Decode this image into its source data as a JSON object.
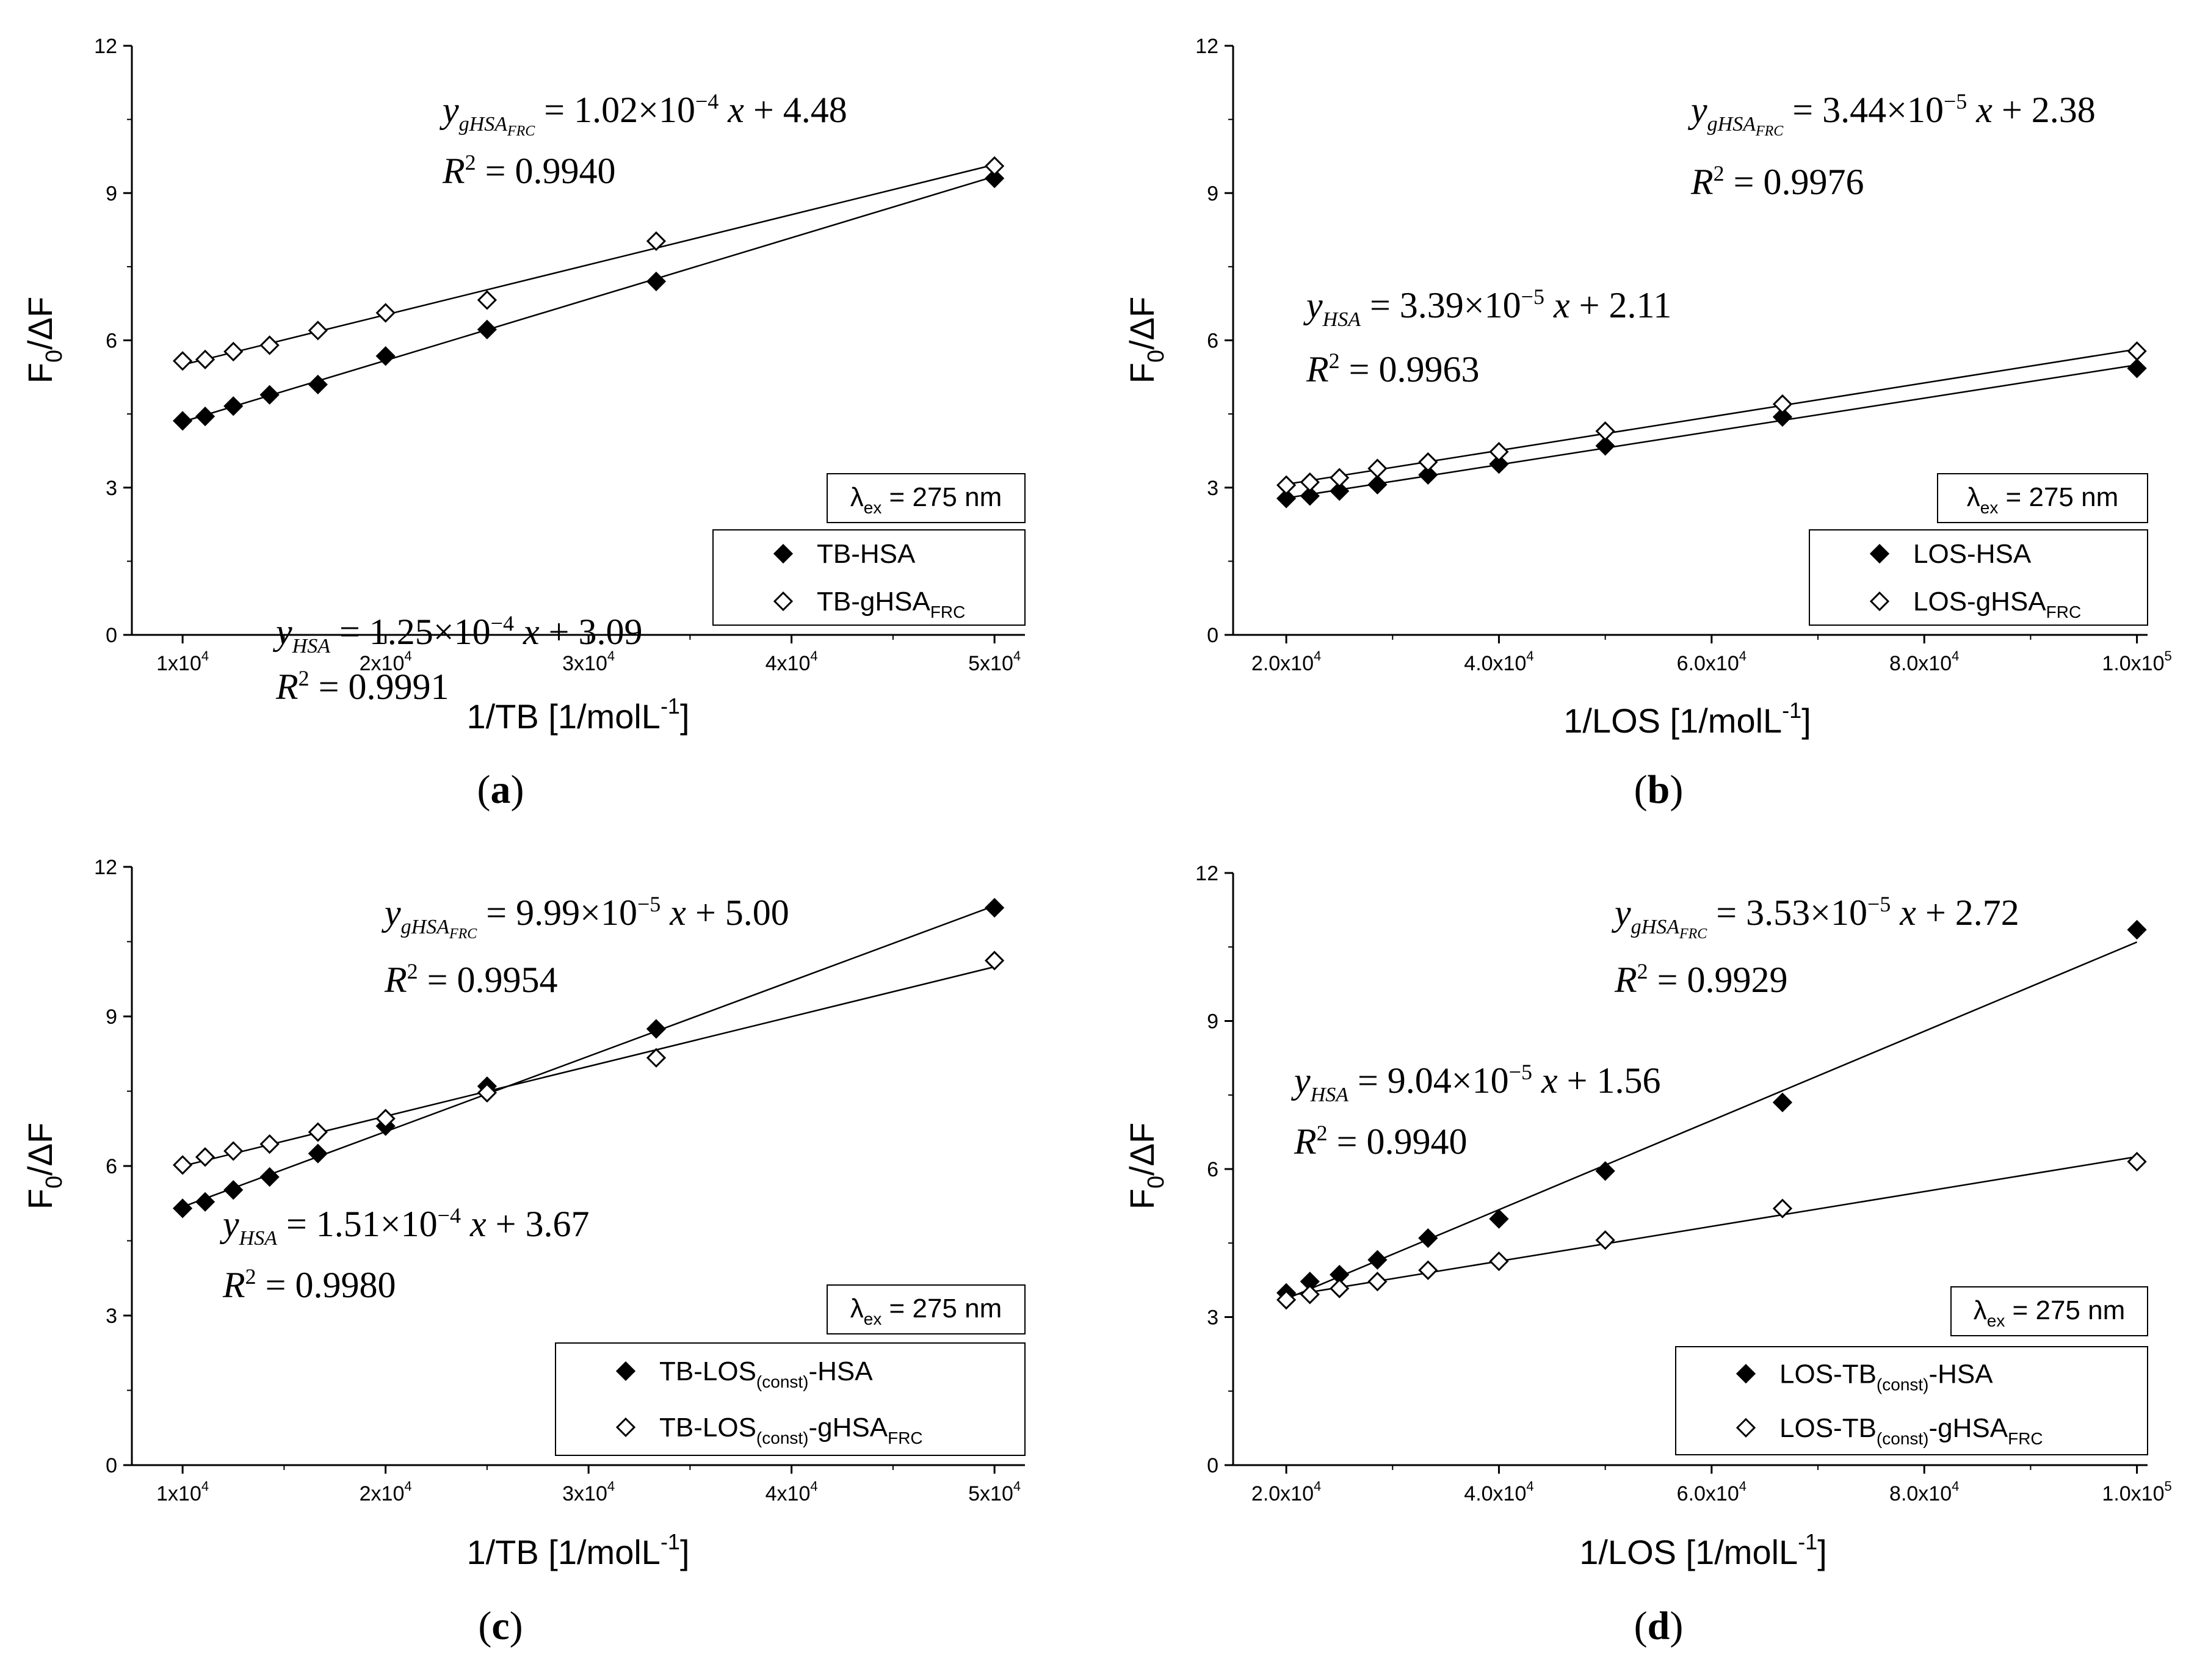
{
  "chart_data": [
    {
      "id": "a",
      "type": "scatter",
      "panel_label": "a",
      "xlabel": "1/TB [1/molL",
      "xlabel_sup": "-1",
      "xlabel_end": "]",
      "ylabel_main": "F",
      "ylabel_sub": "0",
      "ylabel_end": "/ΔF",
      "xlim": [
        7500,
        51500
      ],
      "ylim": [
        0,
        12
      ],
      "xticks": [
        {
          "value": 10000,
          "mant": "1x10",
          "exp": "4"
        },
        {
          "value": 20000,
          "mant": "2x10",
          "exp": "4"
        },
        {
          "value": 30000,
          "mant": "3x10",
          "exp": "4"
        },
        {
          "value": 40000,
          "mant": "4x10",
          "exp": "4"
        },
        {
          "value": 50000,
          "mant": "5x10",
          "exp": "4"
        }
      ],
      "yticks": [
        0,
        3,
        6,
        9,
        12
      ],
      "lambda_box": {
        "sym": "λ",
        "sub": "ex",
        "text": " = 275 nm"
      },
      "series": [
        {
          "name": "TB-HSA",
          "legend_parts": [
            [
              "TB-HSA",
              ""
            ]
          ],
          "marker": "filled-diamond",
          "x": [
            10000,
            11111,
            12500,
            14286,
            16667,
            20000,
            25000,
            33333,
            50000
          ],
          "y": [
            4.36,
            4.45,
            4.66,
            4.89,
            5.1,
            5.68,
            6.22,
            7.2,
            9.3
          ],
          "fit": {
            "slope": 0.000125,
            "intercept": 3.09
          },
          "eq": {
            "y": "y",
            "ysub": "HSA",
            "ysub2": "",
            "coef": "1.25",
            "exp": "−4",
            "intercept": "3.09",
            "r2": "0.9991"
          }
        },
        {
          "name": "TB-gHSAFRC",
          "legend_parts": [
            [
              "TB-gHSA",
              ""
            ],
            [
              "FRC",
              "sub"
            ]
          ],
          "marker": "open-diamond",
          "x": [
            10000,
            11111,
            12500,
            14286,
            16667,
            20000,
            25000,
            33333,
            50000
          ],
          "y": [
            5.58,
            5.61,
            5.77,
            5.9,
            6.2,
            6.56,
            6.82,
            8.02,
            9.55
          ],
          "fit": {
            "slope": 0.000102,
            "intercept": 4.48
          },
          "eq": {
            "y": "y",
            "ysub": "gHSA",
            "ysub2": "FRC",
            "coef": "1.02",
            "exp": "−4",
            "intercept": "4.48",
            "r2": "0.9940"
          }
        }
      ]
    },
    {
      "id": "b",
      "type": "scatter",
      "panel_label": "b",
      "xlabel": "1/LOS [1/molL",
      "xlabel_sup": "-1",
      "xlabel_end": "]",
      "ylabel_main": "F",
      "ylabel_sub": "0",
      "ylabel_end": "/ΔF",
      "xlim": [
        15000,
        101000
      ],
      "ylim": [
        0,
        12
      ],
      "xticks": [
        {
          "value": 20000,
          "mant": "2.0x10",
          "exp": "4"
        },
        {
          "value": 40000,
          "mant": "4.0x10",
          "exp": "4"
        },
        {
          "value": 60000,
          "mant": "6.0x10",
          "exp": "4"
        },
        {
          "value": 80000,
          "mant": "8.0x10",
          "exp": "4"
        },
        {
          "value": 100000,
          "mant": "1.0x10",
          "exp": "5"
        }
      ],
      "yticks": [
        0,
        3,
        6,
        9,
        12
      ],
      "lambda_box": {
        "sym": "λ",
        "sub": "ex",
        "text": " = 275 nm"
      },
      "series": [
        {
          "name": "LOS-HSA",
          "legend_parts": [
            [
              "LOS-HSA",
              ""
            ]
          ],
          "marker": "filled-diamond",
          "x": [
            20000,
            22222,
            25000,
            28571,
            33333,
            40000,
            50000,
            66667,
            100000
          ],
          "y": [
            2.78,
            2.83,
            2.93,
            3.06,
            3.26,
            3.48,
            3.85,
            4.44,
            5.43
          ],
          "fit": {
            "slope": 3.39e-05,
            "intercept": 2.11
          },
          "eq": {
            "y": "y",
            "ysub": "HSA",
            "ysub2": "",
            "coef": "3.39",
            "exp": "−5",
            "intercept": "2.11",
            "r2": "0.9963"
          }
        },
        {
          "name": "LOS-gHSAFRC",
          "legend_parts": [
            [
              "LOS-gHSA",
              ""
            ],
            [
              "FRC",
              "sub"
            ]
          ],
          "marker": "open-diamond",
          "x": [
            20000,
            22222,
            25000,
            28571,
            33333,
            40000,
            50000,
            66667,
            100000
          ],
          "y": [
            3.05,
            3.11,
            3.2,
            3.39,
            3.52,
            3.73,
            4.15,
            4.7,
            5.78
          ],
          "fit": {
            "slope": 3.44e-05,
            "intercept": 2.38
          },
          "eq": {
            "y": "y",
            "ysub": "gHSA",
            "ysub2": "FRC",
            "coef": "3.44",
            "exp": "−5",
            "intercept": "2.38",
            "r2": "0.9976"
          }
        }
      ]
    },
    {
      "id": "c",
      "type": "scatter",
      "panel_label": "c",
      "xlabel": "1/TB [1/molL",
      "xlabel_sup": "-1",
      "xlabel_end": "]",
      "ylabel_main": "F",
      "ylabel_sub": "0",
      "ylabel_end": "/ΔF",
      "xlim": [
        7500,
        51500
      ],
      "ylim": [
        0,
        12
      ],
      "xticks": [
        {
          "value": 10000,
          "mant": "1x10",
          "exp": "4"
        },
        {
          "value": 20000,
          "mant": "2x10",
          "exp": "4"
        },
        {
          "value": 30000,
          "mant": "3x10",
          "exp": "4"
        },
        {
          "value": 40000,
          "mant": "4x10",
          "exp": "4"
        },
        {
          "value": 50000,
          "mant": "5x10",
          "exp": "4"
        }
      ],
      "yticks": [
        0,
        3,
        6,
        9,
        12
      ],
      "lambda_box": {
        "sym": "λ",
        "sub": "ex",
        "text": " = 275 nm"
      },
      "series": [
        {
          "name": "TB-LOS(const)-HSA",
          "legend_parts": [
            [
              "TB-LOS",
              ""
            ],
            [
              "(const)",
              "sub"
            ],
            [
              "-HSA",
              ""
            ]
          ],
          "marker": "filled-diamond",
          "x": [
            10000,
            11111,
            12500,
            14286,
            16667,
            20000,
            25000,
            33333,
            50000
          ],
          "y": [
            5.15,
            5.28,
            5.52,
            5.78,
            6.25,
            6.8,
            7.6,
            8.75,
            11.18
          ],
          "fit": {
            "slope": 0.000151,
            "intercept": 3.67
          },
          "eq": {
            "y": "y",
            "ysub": "HSA",
            "ysub2": "",
            "coef": "1.51",
            "exp": "−4",
            "intercept": "3.67",
            "r2": "0.9980"
          }
        },
        {
          "name": "TB-LOS(const)-gHSAFRC",
          "legend_parts": [
            [
              "TB-LOS",
              ""
            ],
            [
              "(const)",
              "sub"
            ],
            [
              "-gHSA",
              ""
            ],
            [
              "FRC",
              "sub"
            ]
          ],
          "marker": "open-diamond",
          "x": [
            10000,
            11111,
            12500,
            14286,
            16667,
            20000,
            25000,
            33333,
            50000
          ],
          "y": [
            6.02,
            6.18,
            6.3,
            6.44,
            6.68,
            6.95,
            7.47,
            8.17,
            10.12
          ],
          "fit": {
            "slope": 9.99e-05,
            "intercept": 5.0
          },
          "eq": {
            "y": "y",
            "ysub": "gHSA",
            "ysub2": "FRC",
            "coef": "9.99",
            "exp": "−5",
            "intercept": "5.00",
            "r2": "0.9954"
          }
        }
      ]
    },
    {
      "id": "d",
      "type": "scatter",
      "panel_label": "d",
      "xlabel": "1/LOS [1/molL",
      "xlabel_sup": "-1",
      "xlabel_end": "]",
      "ylabel_main": "F",
      "ylabel_sub": "0",
      "ylabel_end": "/ΔF",
      "xlim": [
        15000,
        101000
      ],
      "ylim": [
        0,
        12
      ],
      "xticks": [
        {
          "value": 20000,
          "mant": "2.0x10",
          "exp": "4"
        },
        {
          "value": 40000,
          "mant": "4.0x10",
          "exp": "4"
        },
        {
          "value": 60000,
          "mant": "6.0x10",
          "exp": "4"
        },
        {
          "value": 80000,
          "mant": "8.0x10",
          "exp": "4"
        },
        {
          "value": 100000,
          "mant": "1.0x10",
          "exp": "5"
        }
      ],
      "yticks": [
        0,
        3,
        6,
        9,
        12
      ],
      "lambda_box": {
        "sym": "λ",
        "sub": "ex",
        "text": " = 275 nm"
      },
      "series": [
        {
          "name": "LOS-TB(const)-HSA",
          "legend_parts": [
            [
              "LOS-TB",
              ""
            ],
            [
              "(const)",
              "sub"
            ],
            [
              "-HSA",
              ""
            ]
          ],
          "marker": "filled-diamond",
          "x": [
            20000,
            22222,
            25000,
            28571,
            33333,
            40000,
            50000,
            66667,
            100000
          ],
          "y": [
            3.49,
            3.72,
            3.86,
            4.16,
            4.6,
            4.99,
            5.96,
            7.35,
            10.85
          ],
          "fit": {
            "slope": 9.04e-05,
            "intercept": 1.56
          },
          "eq": {
            "y": "y",
            "ysub": "HSA",
            "ysub2": "",
            "coef": "9.04",
            "exp": "−5",
            "intercept": "1.56",
            "r2": "0.9940"
          }
        },
        {
          "name": "LOS-TB(const)-gHSAFRC",
          "legend_parts": [
            [
              "LOS-TB",
              ""
            ],
            [
              "(const)",
              "sub"
            ],
            [
              "-gHSA",
              ""
            ],
            [
              "FRC",
              "sub"
            ]
          ],
          "marker": "open-diamond",
          "x": [
            20000,
            22222,
            25000,
            28571,
            33333,
            40000,
            50000,
            66667,
            100000
          ],
          "y": [
            3.35,
            3.46,
            3.58,
            3.72,
            3.95,
            4.13,
            4.56,
            5.2,
            6.15
          ],
          "fit": {
            "slope": 3.53e-05,
            "intercept": 2.72
          },
          "eq": {
            "y": "y",
            "ysub": "gHSA",
            "ysub2": "FRC",
            "coef": "3.53",
            "exp": "−5",
            "intercept": "2.72",
            "r2": "0.9929"
          }
        }
      ]
    }
  ]
}
